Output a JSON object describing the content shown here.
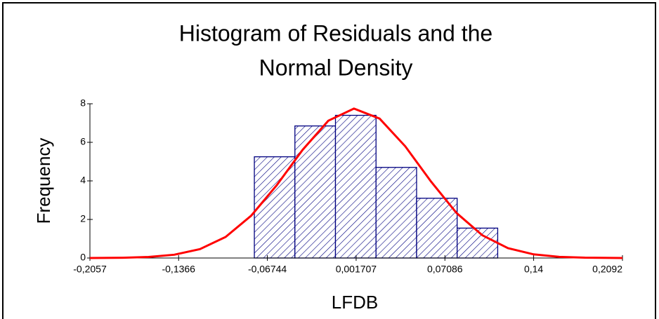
{
  "chart_data": {
    "type": "histogram",
    "title": [
      "Histogram of Residuals and the",
      "Normal Density"
    ],
    "xlabel": "LFDB",
    "ylabel": "Frequency",
    "bins": [
      -0.0776,
      -0.046,
      -0.0144,
      0.0172,
      0.0488,
      0.0804,
      0.112
    ],
    "values": [
      5.25,
      6.85,
      7.4,
      4.7,
      3.1,
      1.55
    ],
    "color": "#000080",
    "curve": {
      "color": "#ff0000",
      "x": [
        -0.2057,
        -0.18,
        -0.16,
        -0.14,
        -0.12,
        -0.1,
        -0.08,
        -0.06,
        -0.04,
        -0.02,
        0,
        0.02,
        0.04,
        0.06,
        0.08,
        0.1,
        0.12,
        0.14,
        0.16,
        0.18,
        0.2092
      ],
      "values": [
        0,
        0.014,
        0.053,
        0.17,
        0.46,
        1.09,
        2.2,
        3.79,
        5.61,
        7.12,
        7.75,
        7.23,
        5.79,
        3.97,
        2.33,
        1.18,
        0.51,
        0.19,
        0.06,
        0.016,
        0
      ]
    },
    "xlim": [
      -0.2057,
      0.2092
    ],
    "xticks": [
      {
        "value": -0.2057,
        "label": "-0,2057"
      },
      {
        "value": -0.1366,
        "label": "-0,1366"
      },
      {
        "value": -0.06744,
        "label": "-0,06744"
      },
      {
        "value": 0.001707,
        "label": "0,001707"
      },
      {
        "value": 0.07086,
        "label": "0,07086"
      },
      {
        "value": 0.14,
        "label": "0,14"
      },
      {
        "value": 0.2092,
        "label": "0,2092"
      }
    ],
    "ylim": [
      0,
      8
    ],
    "yticks": [
      0,
      2,
      4,
      6,
      8
    ]
  }
}
